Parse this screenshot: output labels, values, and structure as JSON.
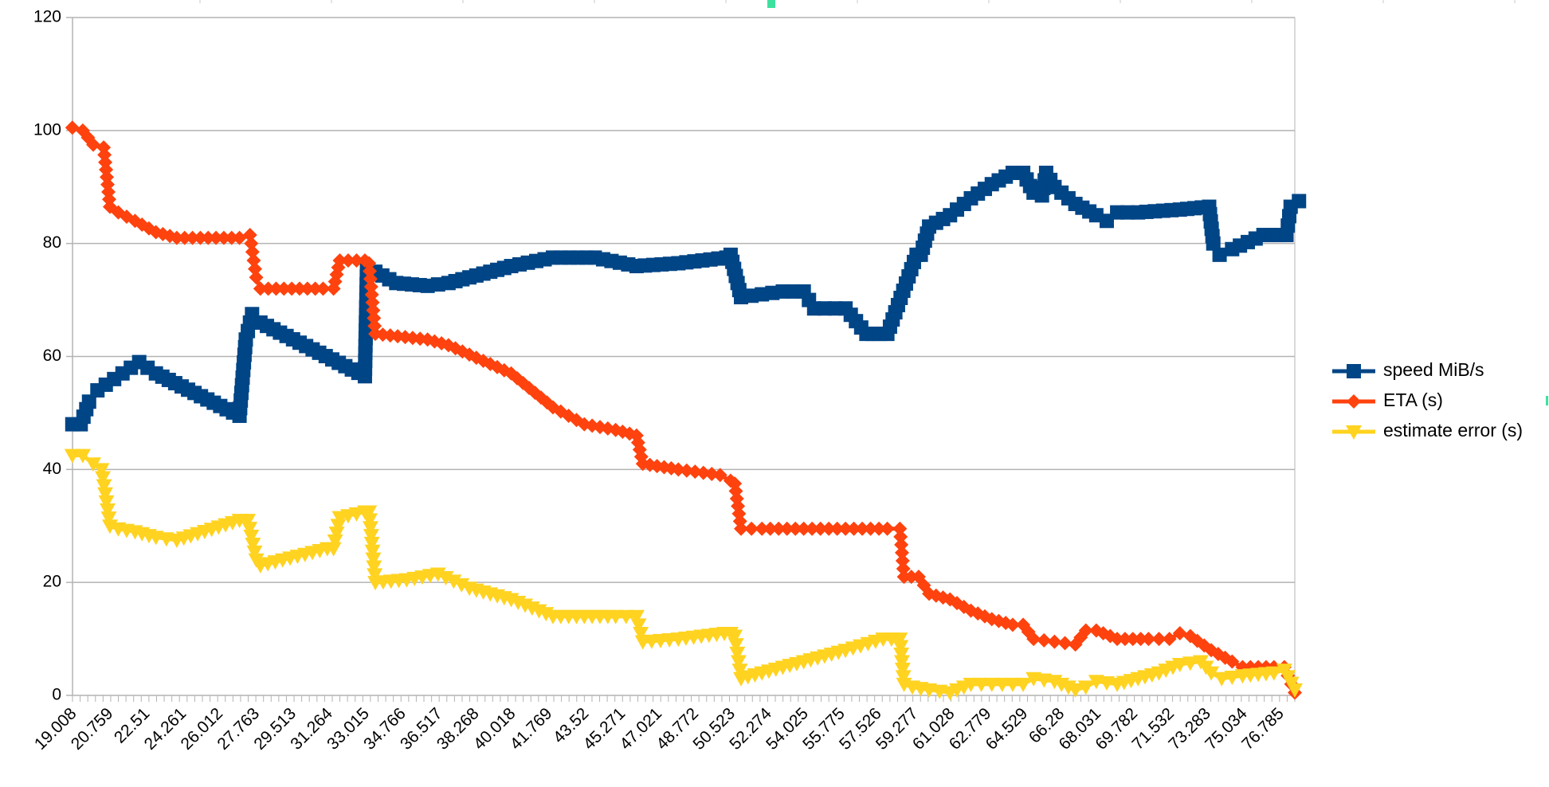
{
  "chart_data": {
    "type": "line",
    "x_tick_labels": [
      "19.008",
      "20.759",
      "22.51",
      "24.261",
      "26.012",
      "27.763",
      "29.513",
      "31.264",
      "33.015",
      "34.766",
      "36.517",
      "38.268",
      "40.018",
      "41.769",
      "43.52",
      "45.271",
      "47.021",
      "48.772",
      "50.523",
      "52.274",
      "54.025",
      "55.775",
      "57.526",
      "59.277",
      "61.028",
      "62.779",
      "64.529",
      "66.28",
      "68.031",
      "69.782",
      "71.532",
      "73.283",
      "75.034",
      "76.785"
    ],
    "xlim": [
      19.008,
      77.5
    ],
    "ylim": [
      0,
      120
    ],
    "y_ticks": [
      0,
      20,
      40,
      60,
      80,
      100,
      120
    ],
    "grid": true,
    "legend_position": "right",
    "series": [
      {
        "name": "speed MiB/s",
        "color": "#004586",
        "marker": "square",
        "x": [
          19.0,
          19.4,
          19.8,
          20.2,
          20.6,
          21.0,
          21.4,
          21.8,
          22.2,
          22.6,
          23.0,
          27.0,
          27.3,
          27.6,
          28.0,
          33.0,
          33.1,
          33.5,
          34.5,
          36.0,
          37.0,
          40.0,
          42.0,
          44.0,
          46.0,
          48.0,
          50.3,
          50.5,
          51.0,
          52.0,
          53.0,
          54.0,
          54.5,
          55.0,
          56.0,
          57.0,
          57.3,
          58.0,
          59.4,
          59.6,
          60.0,
          61.0,
          62.0,
          63.0,
          64.0,
          64.5,
          65.0,
          65.4,
          65.6,
          66.0,
          67.0,
          68.0,
          68.5,
          69.0,
          70.0,
          72.0,
          73.4,
          73.6,
          73.9,
          74.5,
          76.0,
          77.1,
          77.3,
          77.7
        ],
        "y": [
          48,
          48,
          52,
          54,
          55,
          56,
          57,
          58,
          59,
          58,
          57,
          49.5,
          63,
          67.5,
          66,
          56.5,
          75.5,
          75,
          73,
          72.5,
          73,
          76,
          77.5,
          77.5,
          76,
          76.5,
          77.5,
          78,
          70.5,
          71,
          71.5,
          71.5,
          68.5,
          68.5,
          68.5,
          64,
          64,
          64,
          78,
          78,
          83,
          85,
          88,
          90.5,
          92.5,
          92.5,
          89,
          88.5,
          92.5,
          90,
          87,
          85,
          84,
          85.5,
          85.5,
          86,
          86.5,
          80,
          78,
          79,
          81.5,
          81.5,
          86.5,
          87.5
        ]
      },
      {
        "name": "ETA (s)",
        "color": "#ff420e",
        "marker": "diamond",
        "x": [
          19.0,
          19.5,
          20.0,
          20.5,
          20.8,
          21.2,
          22.0,
          23.0,
          24.0,
          27.0,
          27.5,
          27.8,
          28.0,
          31.0,
          31.5,
          31.8,
          33.0,
          33.2,
          33.5,
          36.0,
          37.0,
          40.0,
          42.0,
          43.5,
          45.0,
          46.0,
          46.3,
          48.0,
          50.0,
          50.5,
          50.7,
          51.0,
          52.0,
          54.0,
          56.0,
          58.0,
          58.6,
          58.8,
          59.5,
          60.0,
          61.0,
          62.0,
          63.0,
          64.0,
          64.5,
          65.0,
          66.0,
          67.0,
          67.5,
          68.0,
          69.0,
          70.5,
          71.5,
          72.0,
          72.5,
          73.5,
          74.5,
          75.0,
          76.5,
          77.0,
          77.5
        ],
        "y": [
          100.5,
          100,
          97.5,
          97,
          86.5,
          85.5,
          84,
          82,
          81,
          81,
          81.5,
          74,
          72,
          72,
          72,
          77,
          77,
          76.5,
          64,
          63,
          62,
          57,
          51,
          48,
          47,
          46,
          41,
          40,
          39,
          38,
          37.5,
          29.5,
          29.5,
          29.5,
          29.5,
          29.5,
          29.5,
          21,
          21,
          18,
          17,
          15,
          13.5,
          12.5,
          12.5,
          10,
          9.5,
          9,
          11.5,
          11.5,
          10,
          10,
          10,
          11,
          10.5,
          8,
          6,
          5,
          5,
          5,
          0.5
        ]
      },
      {
        "name": "estimate error (s)",
        "color": "#ffd320",
        "marker": "triangle-down",
        "x": [
          19.0,
          19.5,
          20.0,
          20.4,
          20.8,
          21.2,
          22.0,
          23.0,
          24.0,
          27.0,
          27.4,
          27.8,
          28.0,
          31.2,
          31.5,
          31.8,
          33.0,
          33.2,
          33.5,
          35.0,
          36.5,
          38.0,
          40.0,
          42.0,
          43.5,
          45.0,
          46.0,
          46.3,
          48.0,
          50.2,
          50.5,
          50.7,
          51.0,
          52.0,
          54.0,
          56.0,
          57.8,
          58.6,
          58.8,
          59.2,
          60.0,
          61.0,
          62.0,
          63.0,
          64.0,
          64.5,
          65.0,
          66.0,
          67.0,
          67.5,
          68.0,
          69.0,
          70.0,
          71.0,
          72.0,
          73.0,
          73.5,
          74.0,
          75.0,
          76.5,
          77.0,
          77.5
        ],
        "y": [
          42.5,
          42.5,
          41,
          40,
          30,
          29.5,
          29,
          28,
          27.5,
          31,
          31,
          24,
          23,
          26,
          26,
          31.5,
          32.5,
          32.5,
          20,
          20.5,
          21.5,
          19,
          17,
          14,
          14,
          14,
          14,
          9.5,
          10,
          11,
          11,
          10.5,
          3,
          4,
          6,
          8,
          10,
          10,
          2,
          1.5,
          1,
          0.5,
          2,
          2,
          2,
          2,
          3,
          2.5,
          1,
          1.5,
          2.5,
          2,
          3,
          4,
          5.5,
          6,
          4,
          3,
          3.5,
          4,
          4.5,
          1
        ]
      }
    ]
  }
}
